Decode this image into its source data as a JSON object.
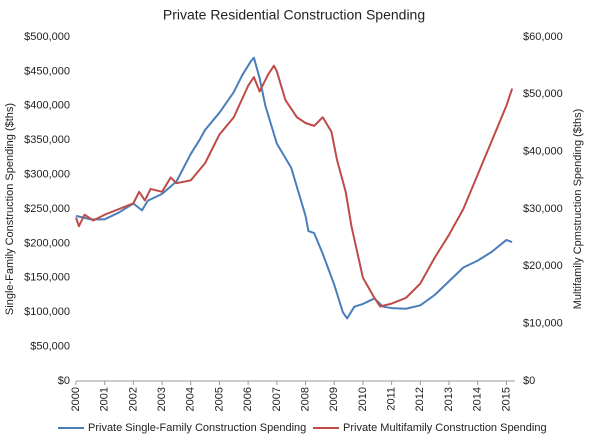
{
  "chart_data": {
    "type": "line",
    "title": "Private Residential Construction Spending",
    "ylabel": "Single-Family Construction Spending ($ths)",
    "y2label": "Multifamily Cpmstruction Spending ($ths)",
    "xlim": [
      2000,
      2015.3
    ],
    "xticks": [
      2000,
      2001,
      2002,
      2003,
      2004,
      2005,
      2006,
      2007,
      2008,
      2009,
      2010,
      2011,
      2012,
      2013,
      2014,
      2015
    ],
    "ylim": [
      0,
      500000
    ],
    "yticks": [
      {
        "value": 0,
        "label": "$0"
      },
      {
        "value": 50000,
        "label": "$50,000"
      },
      {
        "value": 100000,
        "label": "$100,000"
      },
      {
        "value": 150000,
        "label": "$150,000"
      },
      {
        "value": 200000,
        "label": "$200,000"
      },
      {
        "value": 250000,
        "label": "$250,000"
      },
      {
        "value": 300000,
        "label": "$300,000"
      },
      {
        "value": 350000,
        "label": "$350,000"
      },
      {
        "value": 400000,
        "label": "$400,000"
      },
      {
        "value": 450000,
        "label": "$450,000"
      },
      {
        "value": 500000,
        "label": "$500,000"
      }
    ],
    "y2lim": [
      0,
      60000
    ],
    "y2ticks": [
      {
        "value": 0,
        "label": "$0"
      },
      {
        "value": 10000,
        "label": "$10,000"
      },
      {
        "value": 20000,
        "label": "$20,000"
      },
      {
        "value": 30000,
        "label": "$30,000"
      },
      {
        "value": 40000,
        "label": "$40,000"
      },
      {
        "value": 50000,
        "label": "$50,000"
      },
      {
        "value": 60000,
        "label": "$60,000"
      }
    ],
    "legend": "bottom",
    "series": [
      {
        "name": "Private Single-Family Construction Spending",
        "color": "#4a7ebb",
        "x": [
          2000.0,
          2000.5,
          2001.0,
          2001.5,
          2002.0,
          2002.3,
          2002.5,
          2003.0,
          2003.5,
          2004.0,
          2004.3,
          2004.5,
          2005.0,
          2005.5,
          2005.8,
          2006.1,
          2006.2,
          2006.4,
          2006.6,
          2007.0,
          2007.5,
          2008.0,
          2008.1,
          2008.3,
          2008.6,
          2009.0,
          2009.3,
          2009.45,
          2009.7,
          2010.0,
          2010.4,
          2010.7,
          2011.0,
          2011.5,
          2012.0,
          2012.5,
          2013.0,
          2013.5,
          2014.0,
          2014.5,
          2015.0,
          2015.2
        ],
        "values": [
          240000,
          235000,
          235000,
          245000,
          258000,
          248000,
          262000,
          272000,
          290000,
          330000,
          350000,
          365000,
          390000,
          420000,
          445000,
          465000,
          470000,
          440000,
          400000,
          345000,
          310000,
          240000,
          218000,
          215000,
          185000,
          140000,
          100000,
          91000,
          108000,
          112000,
          120000,
          108000,
          106000,
          105000,
          110000,
          125000,
          145000,
          165000,
          175000,
          188000,
          205000,
          202000
        ]
      },
      {
        "name": "Private Multifamily Construction Spending",
        "color": "#be4b48",
        "axis": "y2",
        "x": [
          2000.0,
          2000.1,
          2000.3,
          2000.6,
          2001.0,
          2001.5,
          2002.0,
          2002.2,
          2002.4,
          2002.6,
          2003.0,
          2003.3,
          2003.5,
          2004.0,
          2004.5,
          2005.0,
          2005.5,
          2006.0,
          2006.2,
          2006.4,
          2006.7,
          2006.9,
          2007.0,
          2007.3,
          2007.7,
          2008.0,
          2008.3,
          2008.6,
          2008.9,
          2009.1,
          2009.4,
          2009.6,
          2010.0,
          2010.4,
          2010.6,
          2011.0,
          2011.5,
          2012.0,
          2012.5,
          2013.0,
          2013.5,
          2014.0,
          2014.5,
          2015.0,
          2015.2
        ],
        "values": [
          28500,
          27000,
          29000,
          28000,
          29000,
          30000,
          31000,
          33000,
          31500,
          33500,
          33000,
          35500,
          34500,
          35000,
          38000,
          43000,
          46000,
          51500,
          53000,
          50500,
          53500,
          55000,
          54000,
          49000,
          46000,
          45000,
          44500,
          46000,
          43500,
          38500,
          33000,
          27000,
          18000,
          14500,
          13000,
          13500,
          14500,
          17000,
          21500,
          25500,
          30000,
          36000,
          42000,
          48000,
          51000
        ]
      }
    ]
  }
}
